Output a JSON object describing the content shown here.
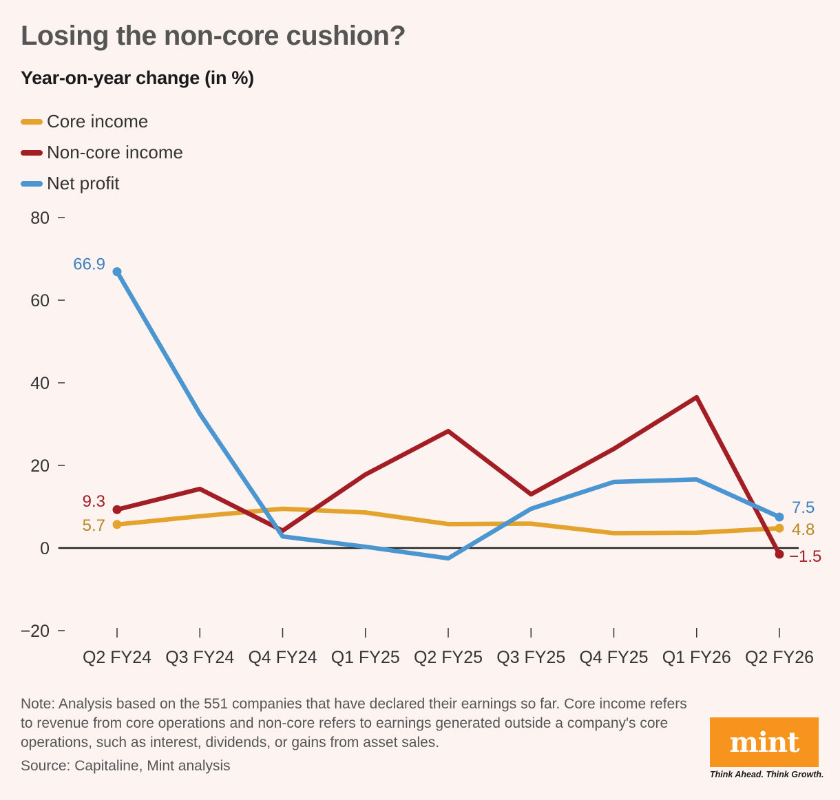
{
  "chart_data": {
    "type": "line",
    "title": "Losing the non-core cushion?",
    "subtitle": "Year-on-year change (in %)",
    "categories": [
      "Q2 FY24",
      "Q3 FY24",
      "Q4 FY24",
      "Q1 FY25",
      "Q2 FY25",
      "Q3 FY25",
      "Q4 FY25",
      "Q1 FY26",
      "Q2 FY26"
    ],
    "ylim": [
      -20,
      80
    ],
    "yticks": [
      -20,
      0,
      20,
      40,
      60,
      80
    ],
    "ytick_labels": [
      "−20",
      "0",
      "20",
      "40",
      "60",
      "80"
    ],
    "grid": false,
    "legend_position": "top-left",
    "series": [
      {
        "name": "Core income",
        "color": "#e3a32c",
        "label_color": "#b5871d",
        "values": [
          5.7,
          7.7,
          9.5,
          8.6,
          5.8,
          5.9,
          3.6,
          3.7,
          4.8
        ],
        "start_label": "5.7",
        "end_label": "4.8"
      },
      {
        "name": "Non-core income",
        "color": "#a21e24",
        "label_color": "#a21e24",
        "values": [
          9.3,
          14.3,
          4.2,
          17.8,
          28.3,
          13.0,
          24.0,
          36.5,
          -1.5
        ],
        "start_label": "9.3",
        "end_label": "−1.5"
      },
      {
        "name": "Net profit",
        "color": "#4b96d1",
        "label_color": "#3b80bd",
        "values": [
          66.9,
          32.5,
          2.8,
          0.3,
          -2.5,
          9.5,
          16.0,
          16.6,
          7.5
        ],
        "start_label": "66.9",
        "end_label": "7.5"
      }
    ]
  },
  "footer": {
    "note": "Note: Analysis based on the 551 companies that have declared their earnings so far. Core income refers to revenue from core operations and non-core refers to earnings generated outside a company's core operations, such as interest, dividends, or gains from asset sales.",
    "source": "Source: Capitaline, Mint analysis"
  },
  "logo": {
    "text": "mint",
    "tagline": "Think Ahead. Think Growth.",
    "color": "#f7941d"
  }
}
